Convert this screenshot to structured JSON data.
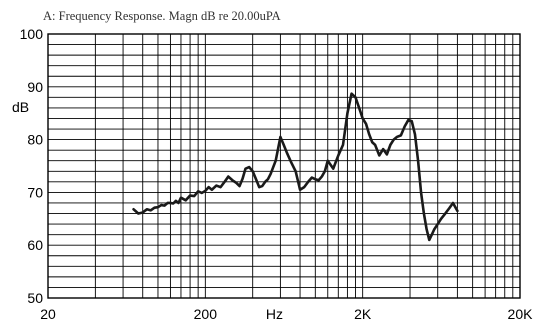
{
  "chart_data": {
    "type": "line",
    "title": "A: Frequency Response. Magn dB re 20.00uPA",
    "xlabel": "Hz",
    "ylabel": "dB",
    "x_scale": "log",
    "xlim": [
      20,
      20000
    ],
    "ylim": [
      50,
      100
    ],
    "x_ticks": [
      {
        "value": 20,
        "label": "20"
      },
      {
        "value": 200,
        "label": "200"
      },
      {
        "value": 2000,
        "label": "2K"
      },
      {
        "value": 20000,
        "label": "20K"
      }
    ],
    "y_ticks": [
      50,
      60,
      70,
      80,
      90,
      100
    ],
    "y_tick_labels": [
      "50",
      "60",
      "70",
      "80",
      "90",
      "100"
    ],
    "grid": true,
    "line_color": "#1a1a1a",
    "series": [
      {
        "x": [
          70,
          75,
          80,
          85,
          90,
          95,
          100,
          105,
          110,
          115,
          120,
          125,
          130,
          135,
          140,
          150,
          160,
          170,
          180,
          190,
          200,
          210,
          220,
          235,
          250,
          265,
          280,
          300,
          315,
          330,
          345,
          360,
          380,
          400,
          420,
          440,
          460,
          480,
          500,
          520,
          560,
          600,
          630,
          660,
          700,
          750,
          800,
          850,
          900,
          950,
          1000,
          1050,
          1100,
          1150,
          1200,
          1300,
          1400,
          1500,
          1600,
          1700,
          1800,
          1900,
          2000,
          2100,
          2200,
          2300,
          2400,
          2550,
          2700,
          2850,
          3000,
          3150,
          3300,
          3500,
          3700,
          3900,
          4100,
          4300,
          4500,
          4700,
          4900,
          5100,
          5300,
          5500,
          5700,
          6000,
          6300,
          6700,
          7100,
          7500,
          8000
        ],
        "y": [
          66.8,
          66.0,
          66.2,
          66.8,
          66.6,
          67.1,
          67.2,
          67.6,
          67.5,
          68.0,
          68.0,
          67.9,
          68.4,
          68.0,
          69.0,
          68.5,
          69.4,
          69.3,
          70.2,
          69.9,
          70.3,
          71.0,
          70.5,
          71.3,
          71.0,
          72.0,
          73.0,
          72.2,
          71.8,
          71.2,
          72.6,
          74.5,
          74.8,
          74.0,
          72.5,
          71.0,
          71.2,
          72.0,
          72.5,
          73.5,
          76.0,
          80.5,
          79.0,
          77.5,
          75.8,
          74.0,
          70.5,
          71.0,
          72.0,
          72.8,
          72.5,
          72.3,
          73.0,
          74.0,
          76.0,
          74.5,
          77.0,
          79.0,
          85.0,
          88.7,
          88.0,
          86.0,
          84.0,
          83.0,
          81.0,
          79.5,
          79.0,
          77.0,
          78.2,
          77.2,
          79.0,
          80.0,
          80.5,
          80.8,
          82.5,
          83.7,
          83.5,
          81.0,
          76.0,
          70.0,
          66.0,
          63.0,
          61.0,
          62.0,
          63.0,
          64.0,
          65.0,
          66.0,
          67.0,
          68.0,
          66.5
        ]
      }
    ]
  }
}
